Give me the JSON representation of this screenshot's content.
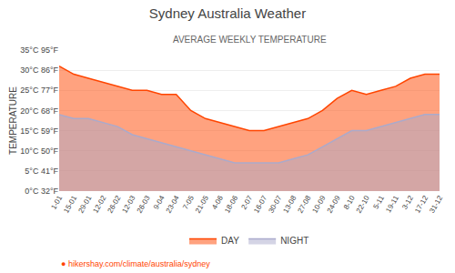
{
  "chart_data": {
    "type": "area",
    "title": "Sydney Australia Weather",
    "subtitle": "AVERAGE WEEKLY TEMPERATURE",
    "ylabel": "TEMPERATURE",
    "categories": [
      "1-01",
      "15-01",
      "29-01",
      "12-02",
      "26-02",
      "12-03",
      "26-03",
      "9-04",
      "23-04",
      "7-05",
      "21-05",
      "4-06",
      "18-06",
      "2-07",
      "16-07",
      "30-07",
      "13-08",
      "27-08",
      "10-09",
      "24-09",
      "8-10",
      "22-10",
      "5-11",
      "19-11",
      "3-12",
      "17-12",
      "31-12"
    ],
    "series": [
      {
        "name": "DAY",
        "color": "#ff4500",
        "values": [
          31,
          29,
          28,
          27,
          26,
          25,
          25,
          24,
          24,
          20,
          18,
          17,
          16,
          15,
          15,
          16,
          17,
          18,
          20,
          23,
          25,
          24,
          25,
          26,
          28,
          29,
          29
        ]
      },
      {
        "name": "NIGHT",
        "color": "#aaaacc",
        "values": [
          19,
          18,
          18,
          17,
          16,
          14,
          13,
          12,
          11,
          10,
          9,
          8,
          7,
          7,
          7,
          7,
          8,
          9,
          11,
          13,
          15,
          15,
          16,
          17,
          18,
          19,
          19
        ]
      }
    ],
    "ylim": [
      0,
      35
    ],
    "yticks": [
      {
        "value": 0,
        "label": "0°C 32°F"
      },
      {
        "value": 5,
        "label": "5°C 41°F"
      },
      {
        "value": 10,
        "label": "10°C 50°F"
      },
      {
        "value": 15,
        "label": "15°C 59°F"
      },
      {
        "value": 20,
        "label": "20°C 68°F"
      },
      {
        "value": 25,
        "label": "25°C 77°F"
      },
      {
        "value": 30,
        "label": "30°C 86°F"
      },
      {
        "value": 35,
        "label": "35°C 95°F"
      }
    ],
    "grid": true,
    "legend": "bottom",
    "annotations": [
      {
        "text": "● hikershay.com/climate/australia/sydney"
      }
    ]
  }
}
